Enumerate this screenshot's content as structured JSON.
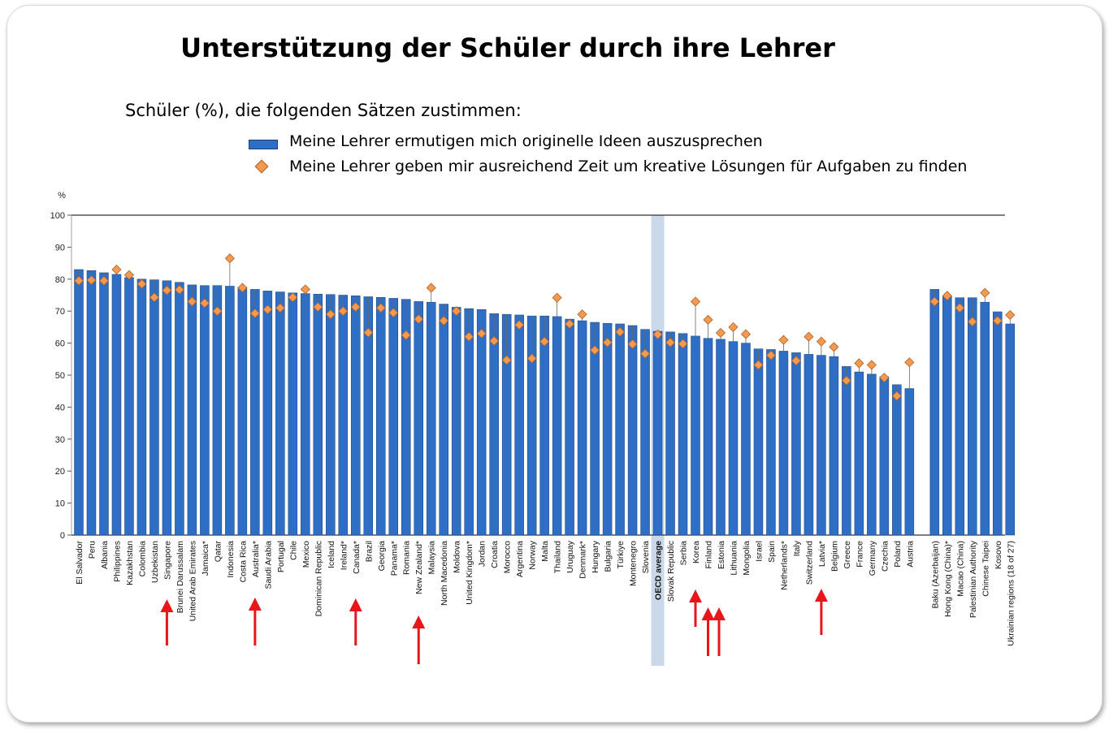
{
  "title": "Unterstützung  der Schüler durch ihre Lehrer",
  "subtitle": "Schüler (%), die folgenden Sätzen zustimmen:",
  "legend": {
    "bar_label": "Meine Lehrer ermutigen mich originelle Ideen auszusprechen",
    "diamond_label": "Meine Lehrer geben mir ausreichend Zeit um kreative Lösungen für Aufgaben zu finden"
  },
  "colors": {
    "bar": "#2e6ec4",
    "bar_edge": "#1b3f7a",
    "diamond": "#f39a52",
    "diamond_edge": "#b46023",
    "highlight": "#c9d9ea",
    "arrow": "#e8161b",
    "axis_line": "#555555"
  },
  "chart_data": {
    "type": "bar",
    "ylabel": "%",
    "ylim": [
      0,
      100
    ],
    "yticks": [
      0,
      10,
      20,
      30,
      40,
      50,
      60,
      70,
      80,
      90,
      100
    ],
    "grid": false,
    "highlighted_category": "OECD average",
    "arrow_markers": [
      "Singapore",
      "Australia*",
      "Canada*",
      "New Zealand*",
      "Korea",
      "Finland",
      "Estonia",
      "Latvia*"
    ],
    "categories": [
      "El Salvador",
      "Peru",
      "Albania",
      "Philippines",
      "Kazakhstan",
      "Colombia",
      "Uzbekistan",
      "Singapore",
      "Brunei Darussalam",
      "United Arab Emirates",
      "Jamaica*",
      "Qatar",
      "Indonesia",
      "Costa Rica",
      "Australia*",
      "Saudi Arabia",
      "Portugal",
      "Chile",
      "Mexico",
      "Dominican Republic",
      "Iceland",
      "Ireland*",
      "Canada*",
      "Brazil",
      "Georgia",
      "Panama*",
      "Romania",
      "New Zealand*",
      "Malaysia",
      "North Macedonia",
      "Moldova",
      "United Kingdom*",
      "Jordan",
      "Croatia",
      "Morocco",
      "Argentina",
      "Norway",
      "Malta",
      "Thailand",
      "Uruguay",
      "Denmark*",
      "Hungary",
      "Bulgaria",
      "Türkiye",
      "Montenegro",
      "Slovenia",
      "OECD average",
      "Slovak Republic",
      "Serbia",
      "Korea",
      "Finland",
      "Estonia",
      "Lithuania",
      "Mongolia",
      "Israel",
      "Spain",
      "Netherlands*",
      "Italy",
      "Switzerland",
      "Latvia*",
      "Belgium",
      "Greece",
      "France",
      "Germany",
      "Czechia",
      "Poland",
      "Austria",
      "",
      "Baku (Azerbaijan)",
      "Hong Kong (China)*",
      "Macao (China)",
      "Palestinian Authority",
      "Chinese Taipei",
      "Kosovo",
      "Ukrainian regions (18 of 27)"
    ],
    "series": [
      {
        "name": "Meine Lehrer ermutigen mich originelle Ideen auszusprechen",
        "type": "bar",
        "values": [
          83,
          82.7,
          82,
          81.5,
          80.5,
          80,
          79.8,
          79.5,
          79,
          78.2,
          78,
          78,
          77.8,
          77.5,
          76.8,
          76.3,
          76,
          75.7,
          75.5,
          75.3,
          75.2,
          75,
          74.8,
          74.5,
          74.3,
          74,
          73.7,
          73,
          72.8,
          72.2,
          71.2,
          70.8,
          70.5,
          69.2,
          69,
          68.8,
          68.5,
          68.5,
          68.3,
          67.5,
          67,
          66.5,
          66.2,
          66,
          65.5,
          64.3,
          63.7,
          63.5,
          63,
          62.2,
          61.5,
          61.2,
          60.5,
          60,
          58.2,
          58,
          57.5,
          57,
          56.5,
          56.2,
          55.8,
          52.7,
          51,
          50.3,
          49.5,
          47,
          45.8,
          null,
          76.8,
          74.8,
          74.2,
          74.2,
          72.8,
          69.8,
          66
        ]
      },
      {
        "name": "Meine Lehrer geben mir ausreichend Zeit um kreative Lösungen für Aufgaben zu finden",
        "type": "scatter",
        "values": [
          79.5,
          79.7,
          79.5,
          83,
          81.3,
          78.5,
          74.3,
          76.5,
          76.7,
          73,
          72.5,
          70,
          86.5,
          77.3,
          69.3,
          70.5,
          71,
          74.3,
          76.8,
          71.3,
          69,
          70,
          71.3,
          63.3,
          71,
          69.5,
          62.5,
          67.5,
          77.3,
          67,
          70,
          62,
          63,
          60.7,
          54.7,
          65.7,
          55.2,
          60.5,
          74.2,
          66,
          69,
          57.8,
          60.2,
          63.5,
          59.7,
          56.7,
          62.7,
          60.2,
          59.8,
          73,
          67.3,
          63.2,
          65,
          62.8,
          53.2,
          56.2,
          61,
          54.5,
          62,
          60.5,
          58.8,
          48.3,
          53.7,
          53.2,
          49.2,
          43.5,
          54,
          null,
          73,
          74.8,
          71,
          66.7,
          75.7,
          67,
          68.8
        ]
      }
    ]
  }
}
